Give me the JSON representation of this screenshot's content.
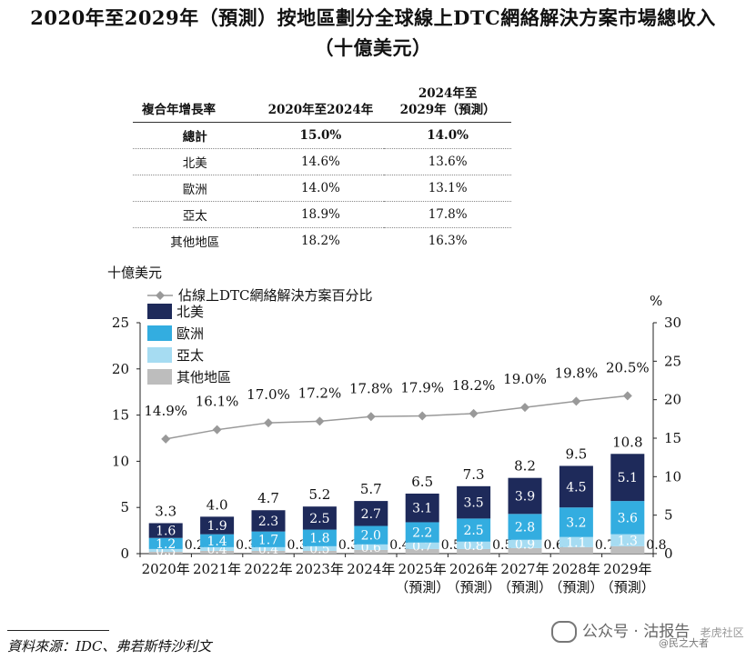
{
  "title_line1": "2020年至2029年（預測）按地區劃分全球線上DTC網絡解決方案市場總收入",
  "title_line2": "（十億美元）",
  "cagr_table": {
    "headers": [
      "複合年增長率",
      "2020年至2024年",
      "2024年至",
      "2029年（預測）"
    ],
    "rows": [
      {
        "region": "總計",
        "v1": "15.0%",
        "v2": "14.0%"
      },
      {
        "region": "北美",
        "v1": "14.6%",
        "v2": "13.6%"
      },
      {
        "region": "歐洲",
        "v1": "14.0%",
        "v2": "13.1%"
      },
      {
        "region": "亞太",
        "v1": "18.9%",
        "v2": "17.8%"
      },
      {
        "region": "其他地區",
        "v1": "18.2%",
        "v2": "16.3%"
      }
    ]
  },
  "source": "資料來源：IDC、弗若斯特沙利文",
  "watermark": {
    "text": "公众号 · 沽报告",
    "sub": "@民之大者",
    "corner": "老虎社区"
  },
  "chart_data": {
    "type": "bar",
    "stacked": true,
    "title": "",
    "ylabel": "十億美元",
    "y2label": "%",
    "ylim": [
      0,
      25
    ],
    "y2lim": [
      0,
      30
    ],
    "yticks": [
      0,
      5,
      10,
      15,
      20,
      25
    ],
    "y2ticks": [
      0,
      5,
      10,
      15,
      20,
      25,
      30
    ],
    "categories": [
      "2020年",
      "2021年",
      "2022年",
      "2023年",
      "2024年",
      "2025年",
      "2026年",
      "2027年",
      "2028年",
      "2029年"
    ],
    "category_sub": [
      "",
      "",
      "",
      "",
      "",
      "（預測）",
      "（預測）",
      "（預測）",
      "（預測）",
      "（預測）"
    ],
    "totals": [
      "3.3",
      "4.0",
      "4.7",
      "5.2",
      "5.7",
      "6.5",
      "7.3",
      "8.2",
      "9.5",
      "10.8"
    ],
    "series": [
      {
        "name": "其他地區",
        "color": "#bdbdbd",
        "values": [
          0.2,
          0.3,
          0.3,
          0.3,
          0.4,
          0.5,
          0.5,
          0.6,
          0.7,
          0.8
        ],
        "labels": [
          "0.2",
          "0.3",
          "0.3",
          "0.3",
          "0.4",
          "0.5",
          "0.5",
          "0.6",
          "0.7",
          "0.8"
        ]
      },
      {
        "name": "亞太",
        "color": "#a6dcf2",
        "values": [
          0.3,
          0.4,
          0.4,
          0.5,
          0.6,
          0.7,
          0.8,
          0.9,
          1.1,
          1.3
        ],
        "labels": [
          "0.3",
          "0.4",
          "0.4",
          "0.5",
          "0.6",
          "0.7",
          "0.8",
          "0.9",
          "1.1",
          "1.3"
        ]
      },
      {
        "name": "歐洲",
        "color": "#33ade0",
        "values": [
          1.2,
          1.4,
          1.7,
          1.8,
          2.0,
          2.2,
          2.5,
          2.8,
          3.2,
          3.6
        ],
        "labels": [
          "1.2",
          "1.4",
          "1.7",
          "1.8",
          "2.0",
          "2.2",
          "2.5",
          "2.8",
          "3.2",
          "3.6"
        ]
      },
      {
        "name": "北美",
        "color": "#1e2a5a",
        "values": [
          1.6,
          1.9,
          2.3,
          2.5,
          2.7,
          3.1,
          3.5,
          3.9,
          4.5,
          5.1
        ],
        "labels": [
          "1.6",
          "1.9",
          "2.3",
          "2.5",
          "2.7",
          "3.1",
          "3.5",
          "3.9",
          "4.5",
          "5.1"
        ]
      }
    ],
    "line": {
      "name": "佔線上DTC網絡解決方案百分比",
      "color": "#999999",
      "values": [
        14.9,
        16.1,
        17.0,
        17.2,
        17.8,
        17.9,
        18.2,
        19.0,
        19.8,
        20.5
      ],
      "labels": [
        "14.9%",
        "16.1%",
        "17.0%",
        "17.2%",
        "17.8%",
        "17.9%",
        "18.2%",
        "19.0%",
        "19.8%",
        "20.5%"
      ]
    },
    "legend": [
      "佔線上DTC網絡解決方案百分比",
      "北美",
      "歐洲",
      "亞太",
      "其他地區"
    ],
    "legend_position": "top-left"
  }
}
